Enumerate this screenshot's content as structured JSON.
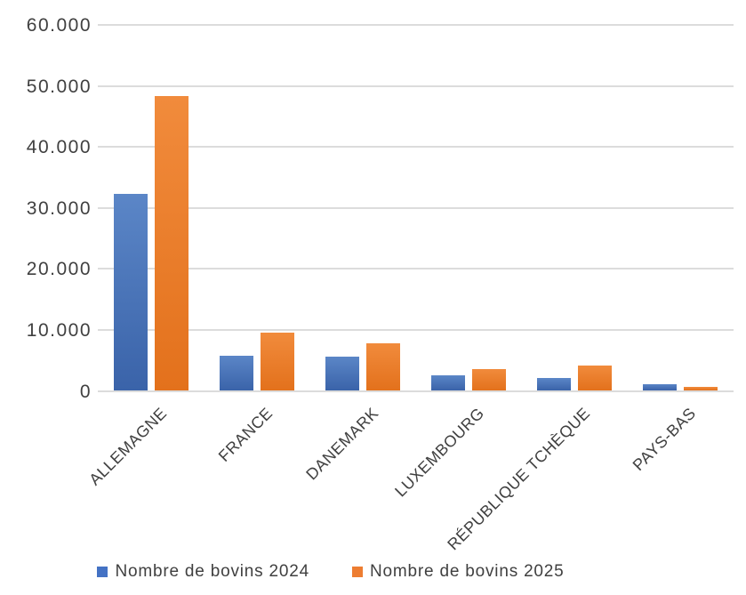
{
  "chart_data": {
    "type": "bar",
    "title": "",
    "xlabel": "",
    "ylabel": "",
    "categories": [
      "ALLEMAGNE",
      "FRANCE",
      "DANEMARK",
      "LUXEMBOURG",
      "RÉPUBLIQUE TCHÈQUE",
      "PAYS-BAS"
    ],
    "series": [
      {
        "name": "Nombre de bovins 2024",
        "color": "#4472C4",
        "gradient_top": "#5B86C7",
        "gradient_bottom": "#3A63A9",
        "values": [
          32300,
          5800,
          5600,
          2500,
          2100,
          1100
        ]
      },
      {
        "name": "Nombre de bovins 2025",
        "color": "#ED7D31",
        "gradient_top": "#F18B3C",
        "gradient_bottom": "#E3711C",
        "values": [
          48300,
          9600,
          7800,
          3600,
          4200,
          600
        ]
      }
    ],
    "ylim": [
      0,
      60000
    ],
    "ytick_step": 10000,
    "ytick_labels": [
      "0",
      "10.000",
      "20.000",
      "30.000",
      "40.000",
      "50.000",
      "60.000"
    ],
    "grid": true,
    "legend_position": "bottom",
    "x_label_rotation_deg": 45
  },
  "colors": {
    "background": "#FFFFFF",
    "gridline": "#DCDCDC",
    "text": "#404040"
  }
}
